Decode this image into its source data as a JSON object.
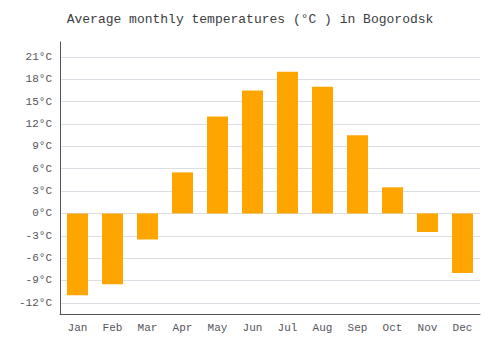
{
  "chart_data": {
    "type": "bar",
    "title": "Average monthly temperatures (°C ) in Bogorodsk",
    "categories": [
      "Jan",
      "Feb",
      "Mar",
      "Apr",
      "May",
      "Jun",
      "Jul",
      "Aug",
      "Sep",
      "Oct",
      "Nov",
      "Dec"
    ],
    "values": [
      -11,
      -9.5,
      -3.5,
      5.5,
      13,
      16.5,
      19,
      17,
      10.5,
      3.5,
      -2.5,
      -8
    ],
    "color": "#FFA500",
    "ylim": [
      -13.5,
      23
    ],
    "yticks": [
      {
        "value": -12,
        "label": "-12°C"
      },
      {
        "value": -9,
        "label": "-9°C"
      },
      {
        "value": -6,
        "label": "-6°C"
      },
      {
        "value": -3,
        "label": "-3°C"
      },
      {
        "value": 0,
        "label": "0°C"
      },
      {
        "value": 3,
        "label": "3°C"
      },
      {
        "value": 6,
        "label": "6°C"
      },
      {
        "value": 9,
        "label": "9°C"
      },
      {
        "value": 12,
        "label": "12°C"
      },
      {
        "value": 15,
        "label": "15°C"
      },
      {
        "value": 18,
        "label": "18°C"
      },
      {
        "value": 21,
        "label": "21°C"
      }
    ],
    "grid": true
  }
}
